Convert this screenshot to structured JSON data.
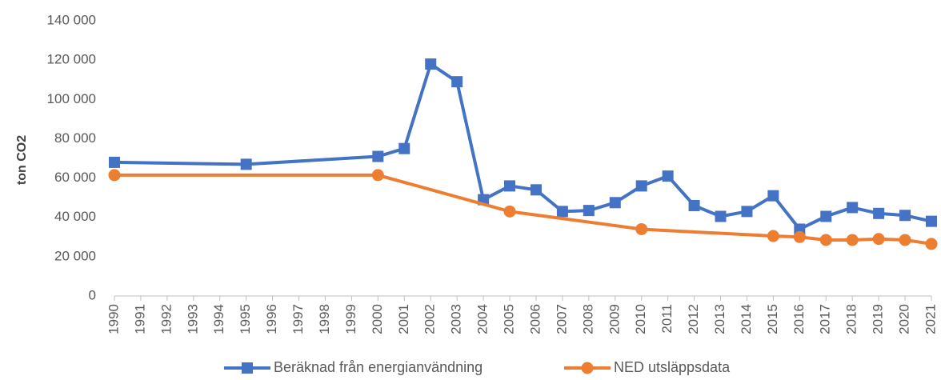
{
  "chart_data": {
    "type": "line",
    "ylabel": "ton CO2",
    "xlim": [
      1990,
      2021
    ],
    "xticks": [
      1990,
      1991,
      1992,
      1993,
      1994,
      1995,
      1996,
      1997,
      1998,
      1999,
      2000,
      2001,
      2002,
      2003,
      2004,
      2005,
      2006,
      2007,
      2008,
      2009,
      2010,
      2011,
      2012,
      2013,
      2014,
      2015,
      2016,
      2017,
      2018,
      2019,
      2020,
      2021
    ],
    "ylim": [
      0,
      140000
    ],
    "yticks": [
      0,
      {
        "value": 20000,
        "label": "20 000"
      },
      {
        "value": 40000,
        "label": "40 000"
      },
      {
        "value": 60000,
        "label": "60 000"
      },
      {
        "value": 80000,
        "label": "80 000"
      },
      {
        "value": 100000,
        "label": "100 000"
      },
      {
        "value": 120000,
        "label": "120 000"
      },
      {
        "value": 140000,
        "label": "140 000"
      }
    ],
    "legend": "bottom",
    "series": [
      {
        "name": "Beräknad från energianvändning",
        "color": "#4472c4",
        "marker": "square",
        "x": [
          1990,
          1995,
          2000,
          2001,
          2002,
          2003,
          2004,
          2005,
          2006,
          2007,
          2008,
          2009,
          2010,
          2011,
          2012,
          2013,
          2014,
          2015,
          2016,
          2017,
          2018,
          2019,
          2020,
          2021
        ],
        "values": [
          68000,
          67000,
          71000,
          75000,
          118000,
          109000,
          49000,
          56000,
          54000,
          43000,
          43500,
          47500,
          56000,
          61000,
          46000,
          40500,
          43000,
          51000,
          34000,
          40500,
          45000,
          42000,
          41000,
          38000
        ]
      },
      {
        "name": "NED utsläppsdata",
        "color": "#ed7d31",
        "marker": "circle",
        "x": [
          1990,
          2000,
          2005,
          2010,
          2015,
          2016,
          2017,
          2018,
          2019,
          2020,
          2021
        ],
        "values": [
          61500,
          61500,
          43000,
          34000,
          30500,
          30000,
          28500,
          28500,
          29000,
          28500,
          26500
        ]
      }
    ]
  }
}
